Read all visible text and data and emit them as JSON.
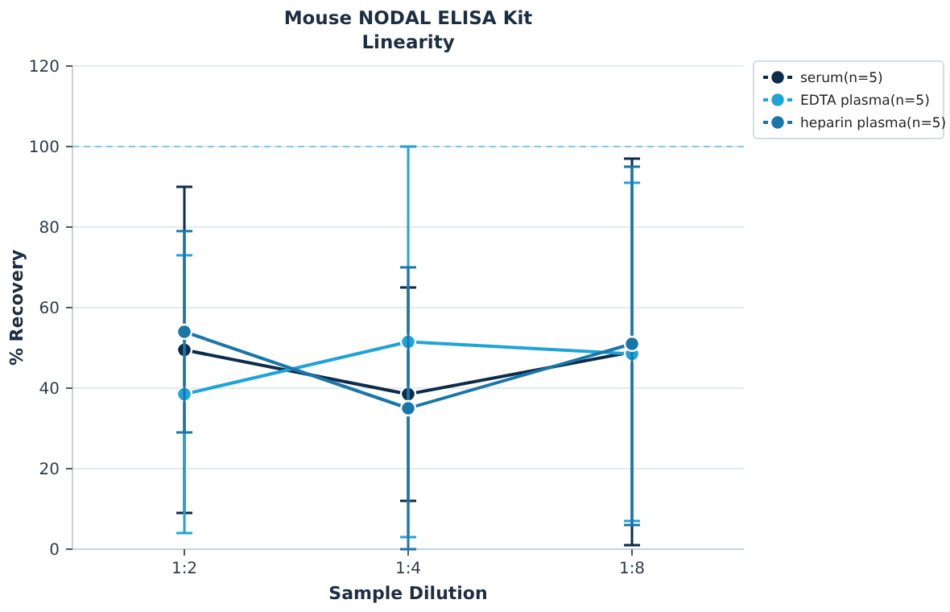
{
  "chart_data": {
    "type": "line",
    "title": "Mouse NODAL ELISA Kit",
    "subtitle": "Linearity",
    "xlabel": "Sample Dilution",
    "ylabel": "% Recovery",
    "categories": [
      "1:2",
      "1:4",
      "1:8"
    ],
    "series": [
      {
        "name": "serum(n=5)",
        "color": "#0d2b4a",
        "values": [
          49.5,
          38.5,
          49
        ],
        "errors": [
          [
            9,
            90
          ],
          [
            12,
            65
          ],
          [
            1,
            97
          ]
        ]
      },
      {
        "name": "EDTA plasma(n=5)",
        "color": "#1fa3d9",
        "values": [
          38.5,
          51.5,
          48.5
        ],
        "errors": [
          [
            4,
            73
          ],
          [
            3,
            100
          ],
          [
            7,
            91
          ]
        ]
      },
      {
        "name": "heparin plasma(n=5)",
        "color": "#1a76a8",
        "values": [
          54,
          35,
          51
        ],
        "errors": [
          [
            29,
            79
          ],
          [
            0,
            70
          ],
          [
            6,
            95
          ]
        ]
      }
    ],
    "ylim": [
      0,
      120
    ],
    "yticks": [
      0,
      20,
      40,
      60,
      80,
      100,
      120
    ],
    "grid": "y",
    "legend": "top right",
    "marker": "circle",
    "line_style": "solid",
    "ref_lines": [
      {
        "axis": "y",
        "value": 100,
        "color": "#7fc9e8",
        "line_style": "dashed"
      }
    ]
  }
}
